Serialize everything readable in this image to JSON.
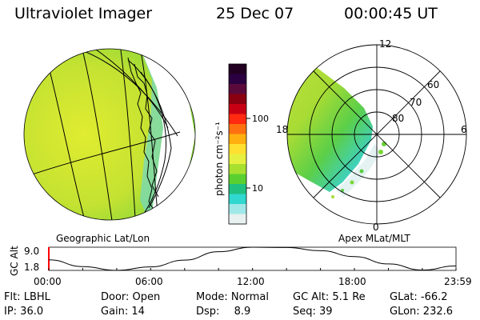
{
  "header": {
    "title": "Ultraviolet Imager",
    "date": "25 Dec 07",
    "time": "00:00:45 UT"
  },
  "colorbar": {
    "unit_label": "photon cm⁻²s⁻¹",
    "tick_labels": [
      "100",
      "10"
    ],
    "colors": [
      "#220022",
      "#2a0040",
      "#5a0a3a",
      "#8a0010",
      "#c80014",
      "#ff2a10",
      "#ff7010",
      "#ffb010",
      "#ffe030",
      "#e6f040",
      "#a8e030",
      "#5ad030",
      "#20c080",
      "#30d8d0",
      "#a0e8e8",
      "#e8f0f0"
    ]
  },
  "left_map": {
    "caption": "Geographic Lat/Lon"
  },
  "right_map": {
    "caption": "Apex MLat/MLT",
    "mlt_labels": [
      "12",
      "18",
      "6",
      "0"
    ],
    "mlat_labels": [
      "60",
      "70",
      "80"
    ]
  },
  "gc_alt_strip": {
    "ylabel": "GC Alt",
    "y_ticks": [
      "9.0",
      "1.8"
    ],
    "x_ticks": [
      "00:00",
      "06:00",
      "12:00",
      "18:00",
      "23:59"
    ]
  },
  "info": {
    "flt": "Flt: LBHL",
    "ip": "IP: 36.0",
    "door": "Door: Open",
    "gain": "Gain: 14",
    "mode": "Mode: Normal",
    "dsp_label": "Dsp:",
    "dsp_value": "8.9",
    "gc_alt": "GC Alt: 5.1 Re",
    "seq": "Seq: 39",
    "glat": "GLat: -66.2",
    "glon": "GLon: 232.6"
  },
  "chart_data": {
    "type": "line",
    "title": "",
    "xlabel": "",
    "ylabel": "GC Alt",
    "x": [
      "00:00",
      "02:00",
      "04:00",
      "06:00",
      "08:00",
      "10:00",
      "12:00",
      "14:00",
      "16:00",
      "18:00",
      "20:00",
      "22:00",
      "23:59"
    ],
    "series": [
      {
        "values": [
          5.1,
          3.0,
          1.8,
          2.9,
          5.0,
          7.6,
          9.0,
          8.9,
          7.9,
          6.1,
          3.8,
          1.9,
          3.2
        ]
      }
    ],
    "ylim": [
      1.8,
      9.0
    ],
    "grid": false
  }
}
